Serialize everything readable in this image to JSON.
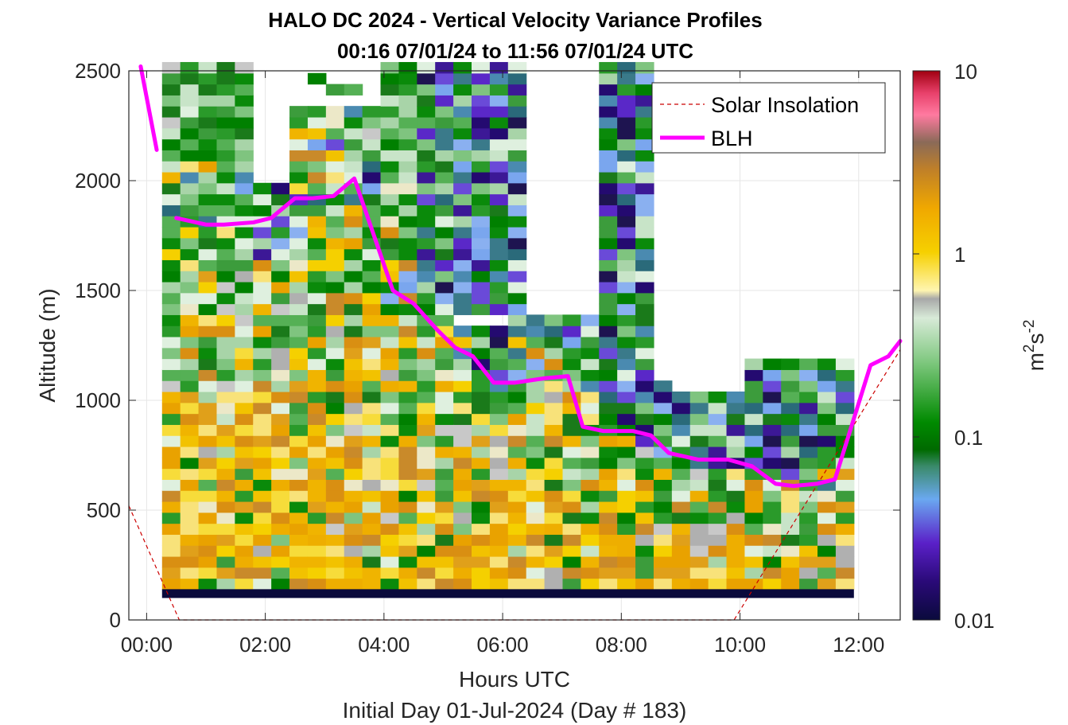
{
  "chart_data": {
    "type": "heatmap",
    "title": "HALO DC 2024 - Vertical Velocity Variance Profiles",
    "subtitle": "00:16 07/01/24 to 11:56 07/01/24  UTC",
    "xlabel": "Hours UTC",
    "xlabel2": "Initial Day 01-Jul-2024 (Day # 183)",
    "ylabel": "Altitude (m)",
    "xlim": [
      -0.3,
      12.7
    ],
    "ylim": [
      0,
      2500
    ],
    "x_ticks": [
      0,
      2,
      4,
      6,
      8,
      10,
      12
    ],
    "x_tick_labels": [
      "00:00",
      "02:00",
      "04:00",
      "06:00",
      "08:00",
      "10:00",
      "12:00"
    ],
    "y_ticks": [
      0,
      500,
      1000,
      1500,
      2000,
      2500
    ],
    "y_tick_labels": [
      "0",
      "500",
      "1000",
      "1500",
      "2000",
      "2500"
    ],
    "grid": true,
    "legend_position": "top-right",
    "colorbar": {
      "label": "m2s-2",
      "label_base": "m",
      "label_sup1": "2",
      "label_mid": "s",
      "label_sup2": "-2",
      "scale": "log",
      "range": [
        0.01,
        10
      ],
      "tick_labels": [
        "10",
        "1",
        "0.1",
        "0.01"
      ],
      "tick_values": [
        10,
        1,
        0.1,
        0.01
      ]
    },
    "series": [
      {
        "name": "Solar Insolation",
        "style": "dashed",
        "color": "#cc0000",
        "x": [
          -0.3,
          0.55,
          9.9,
          12.7
        ],
        "y": [
          520,
          0,
          0,
          1230
        ]
      },
      {
        "name": "BLH",
        "style": "solid",
        "color": "#ff00ff",
        "segments": [
          {
            "x": [
              -0.1,
              0.17
            ],
            "y": [
              2520,
              2140
            ]
          },
          {
            "x": [
              0.5,
              1.0,
              1.3,
              1.8,
              2.1,
              2.5,
              2.8,
              3.15,
              3.5,
              4.15,
              4.5,
              4.9,
              5.2,
              5.5,
              5.85,
              6.2,
              6.7,
              7.1,
              7.35,
              7.7,
              8.2,
              8.5,
              8.8,
              9.3,
              9.8,
              10.2,
              10.6,
              10.9,
              11.3,
              11.6,
              12.2,
              12.5,
              12.7
            ],
            "y": [
              1830,
              1800,
              1800,
              1810,
              1830,
              1920,
              1920,
              1930,
              2010,
              1500,
              1440,
              1320,
              1240,
              1200,
              1080,
              1080,
              1100,
              1110,
              880,
              860,
              860,
              840,
              760,
              730,
              730,
              700,
              620,
              610,
              620,
              640,
              1160,
              1200,
              1270
            ]
          }
        ]
      }
    ],
    "heatmap": {
      "x_start": 0.26,
      "x_end": 11.92,
      "columns": 38,
      "row_height_m": 50,
      "ground_band_m": [
        100,
        140
      ],
      "ground_band_value": 0.01,
      "note_values": "cell values are variance in m^2 s^-2"
    }
  },
  "legend": {
    "items": [
      {
        "label": "Solar Insolation",
        "color": "#cc0000"
      },
      {
        "label": "BLH",
        "color": "#ff00ff"
      }
    ]
  }
}
